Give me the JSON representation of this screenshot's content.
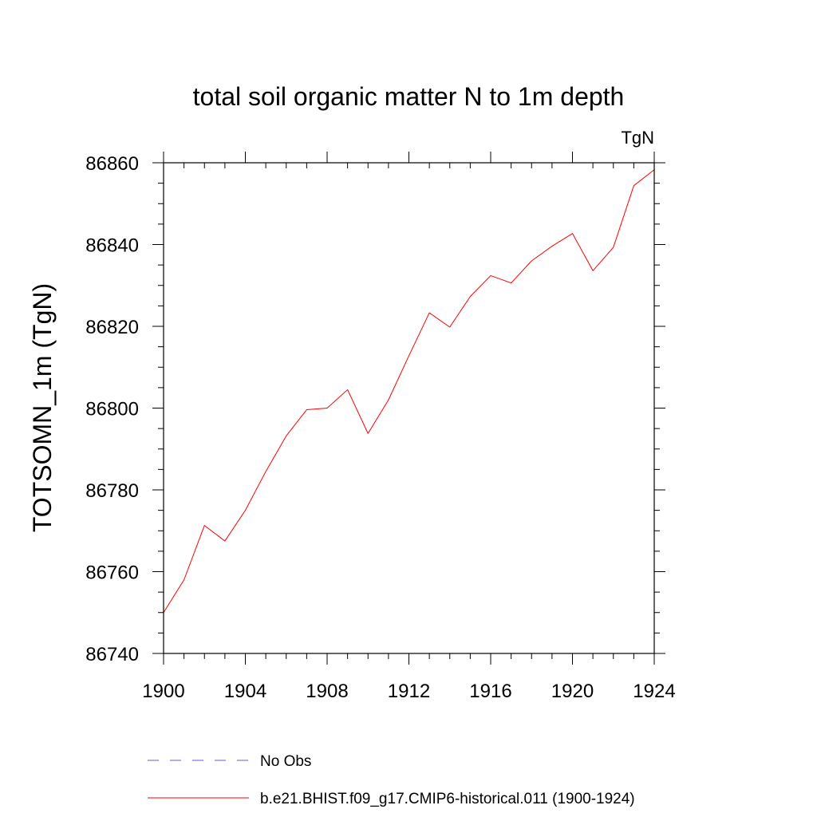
{
  "chart_data": {
    "type": "line",
    "title": "total soil organic matter N to 1m depth",
    "units_label": "TgN",
    "xlabel": "",
    "ylabel": "TOTSOMN_1m  (TgN)",
    "xlim": [
      1900,
      1924
    ],
    "ylim": [
      86740,
      86860
    ],
    "x_major_ticks": [
      1900,
      1904,
      1908,
      1912,
      1916,
      1920,
      1924
    ],
    "x_minor_step": 1,
    "y_major_ticks": [
      86740,
      86760,
      86780,
      86800,
      86820,
      86840,
      86860
    ],
    "y_minor_step": 5,
    "grid": false,
    "legend_position": "bottom",
    "series": [
      {
        "name": "b.e21.BHIST.f09_g17.CMIP6-historical.011 (1900-1924)",
        "color": "#ff0000",
        "style": "solid",
        "x": [
          1900,
          1901,
          1902,
          1903,
          1904,
          1905,
          1906,
          1907,
          1908,
          1909,
          1910,
          1911,
          1912,
          1913,
          1914,
          1915,
          1916,
          1917,
          1918,
          1919,
          1920,
          1921,
          1922,
          1923,
          1924
        ],
        "y": [
          86750,
          86758,
          86771.3,
          86767.5,
          86775,
          86784.5,
          86793.2,
          86799.6,
          86800,
          86804.5,
          86793.8,
          86802,
          86812.8,
          86823.3,
          86819.8,
          86827.3,
          86832.4,
          86830.6,
          86836,
          86839.6,
          86842.7,
          86833.6,
          86839.3,
          86854.4,
          86858.3
        ]
      }
    ],
    "legend": [
      {
        "label": "No Obs",
        "color": "#6a5acd",
        "style": "dashed"
      },
      {
        "label": "b.e21.BHIST.f09_g17.CMIP6-historical.011 (1900-1924)",
        "color": "#ff0000",
        "style": "solid"
      }
    ]
  }
}
